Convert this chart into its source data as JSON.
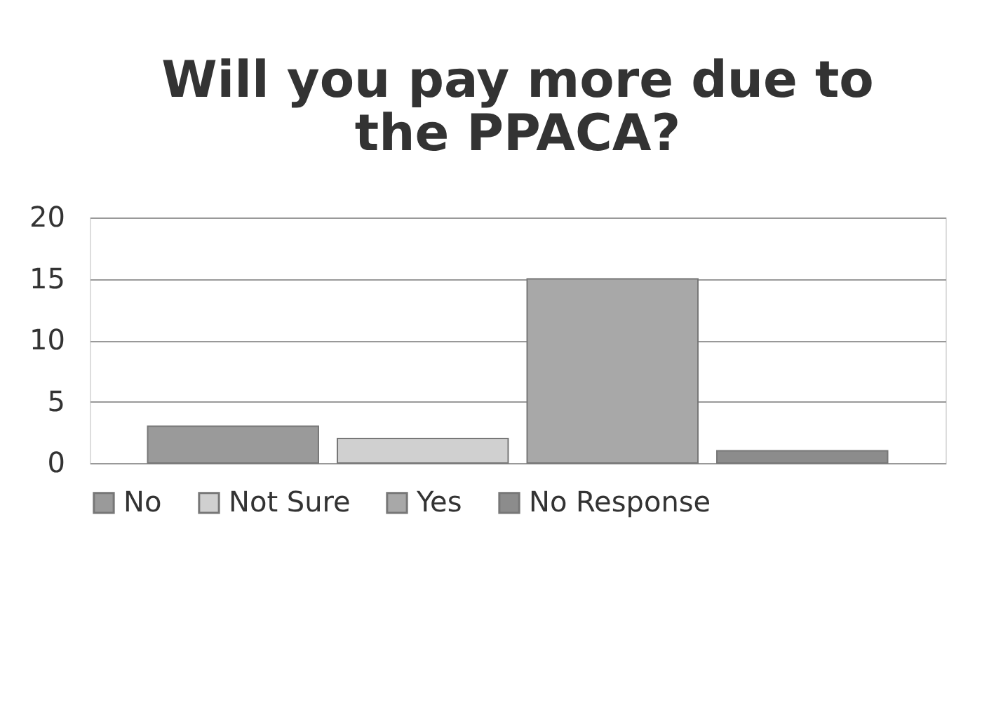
{
  "chart_data": {
    "type": "bar",
    "title": [
      "Will you pay more due to",
      "the PPACA?"
    ],
    "categories": [
      null
    ],
    "series": [
      {
        "name": "No",
        "color": "#9a9a9a",
        "values": [
          3
        ]
      },
      {
        "name": "Not Sure",
        "color": "#d0d0d0",
        "values": [
          2
        ]
      },
      {
        "name": "Yes",
        "color": "#a8a8a8",
        "values": [
          15
        ]
      },
      {
        "name": "No Response",
        "color": "#8c8c8c",
        "values": [
          1
        ]
      }
    ],
    "ylim": [
      0,
      20
    ],
    "yticks": [
      0,
      5,
      10,
      15,
      20
    ],
    "grid": "y",
    "legend": "bottom"
  }
}
